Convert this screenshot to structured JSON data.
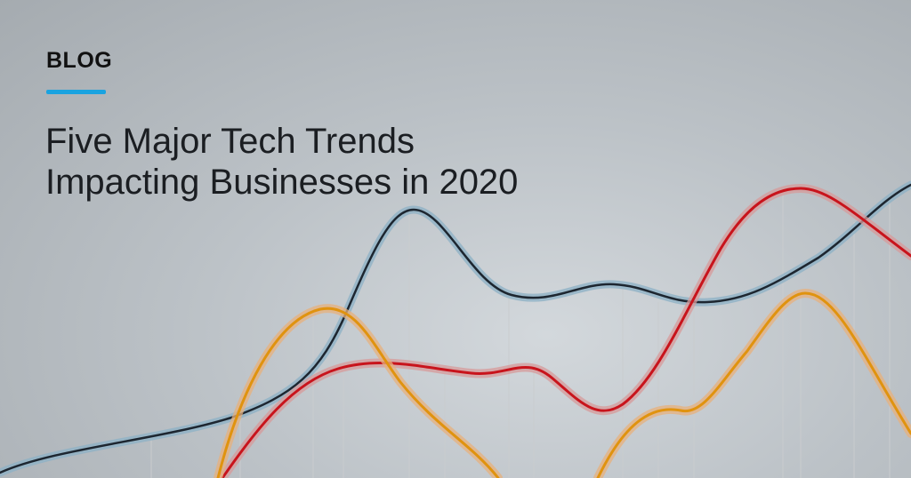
{
  "banner": {
    "kicker": "BLOG",
    "title_line1": "Five Major Tech Trends",
    "title_line2": "Impacting Businesses in 2020",
    "accent_color": "#1aa3e0"
  }
}
